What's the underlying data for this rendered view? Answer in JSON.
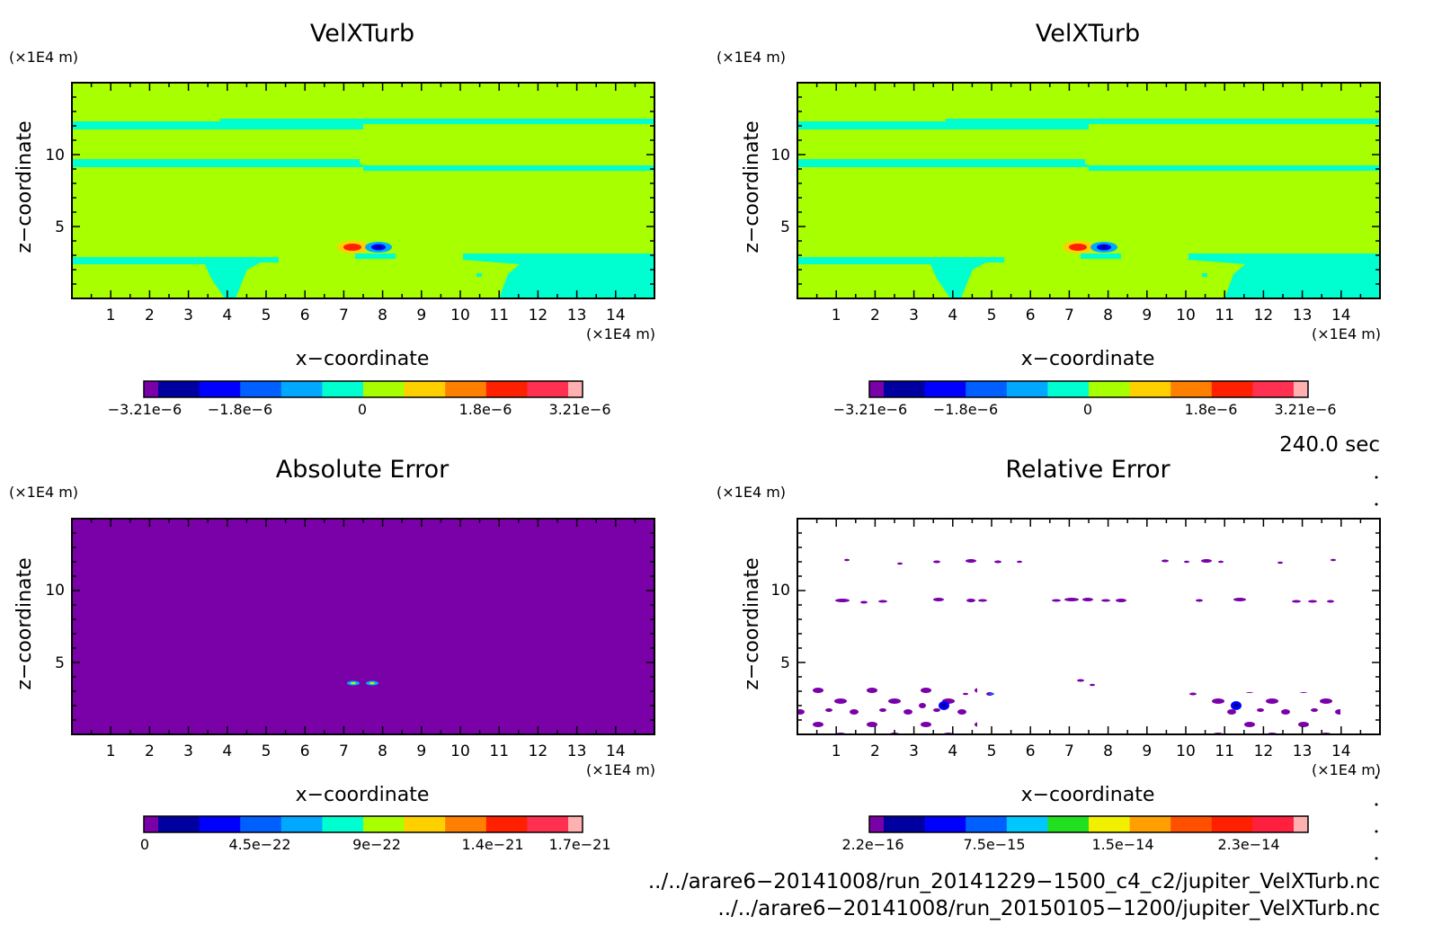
{
  "chart_data": [
    {
      "type": "heatmap",
      "title": "VelXTurb",
      "xlabel": "x−coordinate",
      "ylabel": "z−coordinate",
      "x_unit": "(×1E4 m)",
      "y_unit": "(×1E4 m)",
      "xlim": [
        0,
        15
      ],
      "ylim": [
        0,
        15
      ],
      "x_ticks": [
        "1",
        "2",
        "3",
        "4",
        "5",
        "6",
        "7",
        "8",
        "9",
        "10",
        "11",
        "12",
        "13",
        "14"
      ],
      "y_ticks": [
        "5",
        "10"
      ],
      "colorbar_labels": [
        "−3.21e−6",
        "−1.8e−6",
        "0",
        "1.8e−6",
        "3.21e−6"
      ],
      "colorbar_colors": [
        "#7a00a8",
        "#0000a0",
        "#0000ff",
        "#0060ff",
        "#00a8ff",
        "#00ffd0",
        "#a8ff00",
        "#ffd000",
        "#ff8000",
        "#ff2000",
        "#ff3050",
        "#ffb0b0"
      ],
      "background_level": 0
    },
    {
      "type": "heatmap",
      "title": "VelXTurb",
      "xlabel": "x−coordinate",
      "ylabel": "z−coordinate",
      "x_unit": "(×1E4 m)",
      "y_unit": "(×1E4 m)",
      "xlim": [
        0,
        15
      ],
      "ylim": [
        0,
        15
      ],
      "x_ticks": [
        "1",
        "2",
        "3",
        "4",
        "5",
        "6",
        "7",
        "8",
        "9",
        "10",
        "11",
        "12",
        "13",
        "14"
      ],
      "y_ticks": [
        "5",
        "10"
      ],
      "colorbar_labels": [
        "−3.21e−6",
        "−1.8e−6",
        "0",
        "1.8e−6",
        "3.21e−6"
      ],
      "colorbar_colors": [
        "#7a00a8",
        "#0000a0",
        "#0000ff",
        "#0060ff",
        "#00a8ff",
        "#00ffd0",
        "#a8ff00",
        "#ffd000",
        "#ff8000",
        "#ff2000",
        "#ff3050",
        "#ffb0b0"
      ],
      "background_level": 0
    },
    {
      "type": "heatmap",
      "title": "Absolute Error",
      "xlabel": "x−coordinate",
      "ylabel": "z−coordinate",
      "x_unit": "(×1E4 m)",
      "y_unit": "(×1E4 m)",
      "xlim": [
        0,
        15
      ],
      "ylim": [
        0,
        15
      ],
      "x_ticks": [
        "1",
        "2",
        "3",
        "4",
        "5",
        "6",
        "7",
        "8",
        "9",
        "10",
        "11",
        "12",
        "13",
        "14"
      ],
      "y_ticks": [
        "5",
        "10"
      ],
      "colorbar_labels": [
        "0",
        "4.5e−22",
        "9e−22",
        "1.4e−21",
        "1.7e−21"
      ],
      "colorbar_colors": [
        "#7a00a8",
        "#0000a0",
        "#0000ff",
        "#0060ff",
        "#00a8ff",
        "#00ffd0",
        "#a8ff00",
        "#ffd000",
        "#ff8000",
        "#ff2000",
        "#ff3050",
        "#ffb0b0"
      ],
      "background_level": 0
    },
    {
      "type": "heatmap",
      "title": "Relative Error",
      "xlabel": "x−coordinate",
      "ylabel": "z−coordinate",
      "x_unit": "(×1E4 m)",
      "y_unit": "(×1E4 m)",
      "xlim": [
        0,
        15
      ],
      "ylim": [
        0,
        15
      ],
      "x_ticks": [
        "1",
        "2",
        "3",
        "4",
        "5",
        "6",
        "7",
        "8",
        "9",
        "10",
        "11",
        "12",
        "13",
        "14"
      ],
      "y_ticks": [
        "5",
        "10"
      ],
      "colorbar_labels": [
        "2.2e−16",
        "7.5e−15",
        "1.5e−14",
        "2.3e−14"
      ],
      "colorbar_colors": [
        "#7a00a8",
        "#0000a0",
        "#0000ff",
        "#0060ff",
        "#00c8ff",
        "#20e020",
        "#f0f000",
        "#ffa000",
        "#ff5000",
        "#ff2000",
        "#ff2040",
        "#ffb0b0"
      ],
      "background_level": "blank"
    }
  ],
  "time_label": "240.0 sec",
  "files": [
    "../../arare6−20141008/run_20141229−1500_c4_c2/jupiter_VelXTurb.nc",
    "../../arare6−20141008/run_20150105−1200/jupiter_VelXTurb.nc"
  ]
}
